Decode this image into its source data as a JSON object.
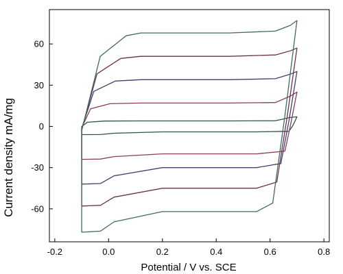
{
  "chart_data": {
    "type": "line",
    "title": "",
    "xlabel": "Potential / V vs. SCE",
    "ylabel": "Current density    mA/mg",
    "xlim": [
      -0.22,
      0.82
    ],
    "ylim": [
      -84,
      85
    ],
    "xticks": [
      -0.2,
      0.0,
      0.2,
      0.4,
      0.6,
      0.8
    ],
    "xtick_labels": [
      "-0.2",
      "0.0",
      "0.2",
      "0.4",
      "0.6",
      "0.8"
    ],
    "yticks": [
      -60,
      -30,
      0,
      30,
      60
    ],
    "ytick_labels": [
      "-60",
      "-30",
      "0",
      "30",
      "60"
    ],
    "grid": false,
    "legend": "none",
    "series": [
      {
        "color": "#2f4f4f",
        "upper_plateau": 4,
        "lower_plateau": -4,
        "upper_end": 7,
        "lower_start": -6
      },
      {
        "color": "#8b3a5a",
        "upper_plateau": 17,
        "lower_plateau": -20,
        "upper_end": 25,
        "lower_start": -24
      },
      {
        "color": "#3f3f6b",
        "upper_plateau": 34,
        "lower_plateau": -30,
        "upper_end": 40,
        "lower_start": -42
      },
      {
        "color": "#6b2f4f",
        "upper_plateau": 51,
        "lower_plateau": -45,
        "upper_end": 57,
        "lower_start": -58
      },
      {
        "color": "#3f6b5a",
        "upper_plateau": 68,
        "lower_plateau": -62,
        "upper_end": 77,
        "lower_start": -77
      }
    ]
  }
}
